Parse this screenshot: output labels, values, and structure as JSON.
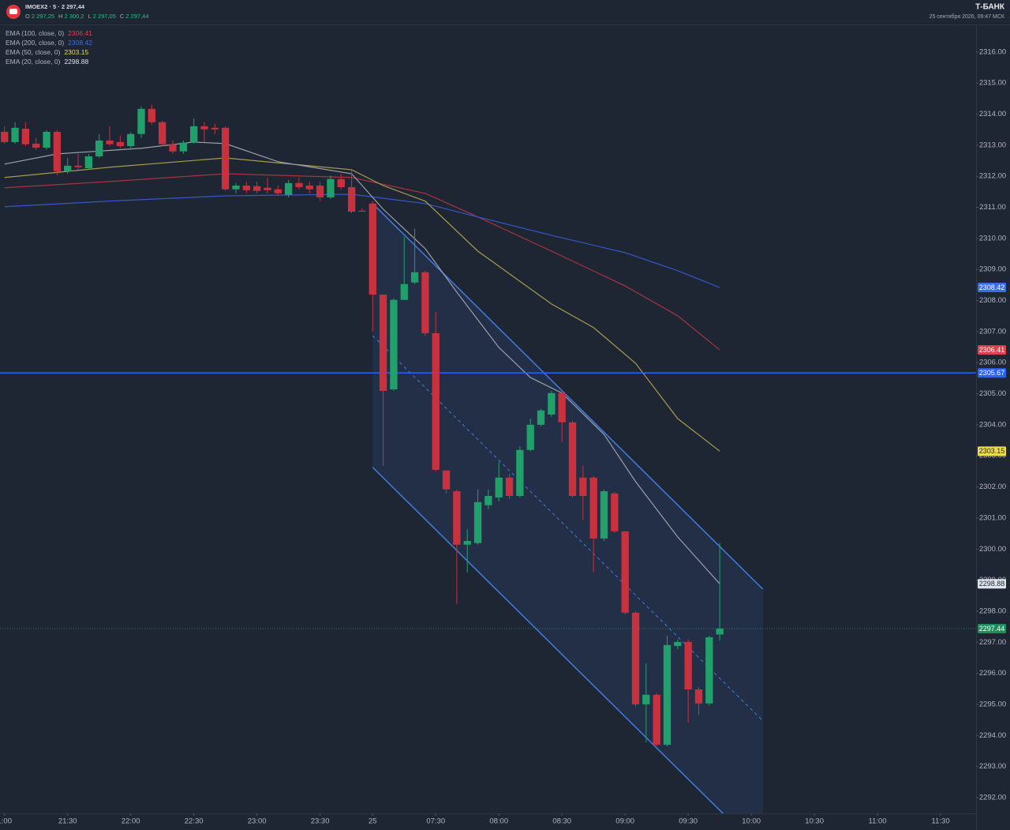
{
  "header": {
    "title": "IMOEX2 · 5 · 2 297,44",
    "ohlc": [
      {
        "key": "O",
        "value": "2 297,25"
      },
      {
        "key": "H",
        "value": "2 300,2"
      },
      {
        "key": "L",
        "value": "2 297,05"
      },
      {
        "key": "C",
        "value": "2 297,44"
      }
    ],
    "brand": "Т-БАНК",
    "date": "25 сентября 2026, 09:47 МСК"
  },
  "chart_data": {
    "type": "candlestick",
    "xlim": [
      -0.43,
      92.37
    ],
    "ylim": [
      2291.49,
      2316.86
    ],
    "xticks": [
      {
        "value": 0,
        "label": "1:00"
      },
      {
        "value": 6,
        "label": "21:30"
      },
      {
        "value": 12,
        "label": "22:00"
      },
      {
        "value": 18,
        "label": "22:30"
      },
      {
        "value": 24,
        "label": "23:00"
      },
      {
        "value": 30,
        "label": "23:30"
      },
      {
        "value": 35,
        "label": "25"
      },
      {
        "value": 41,
        "label": "07:30"
      },
      {
        "value": 47,
        "label": "08:00"
      },
      {
        "value": 53,
        "label": "08:30"
      },
      {
        "value": 59,
        "label": "09:00"
      },
      {
        "value": 65,
        "label": "09:30"
      },
      {
        "value": 71,
        "label": "10:00"
      },
      {
        "value": 77,
        "label": "10:30"
      },
      {
        "value": 83,
        "label": "11:00"
      },
      {
        "value": 89,
        "label": "11:30"
      }
    ],
    "yticks": [
      {
        "value": 2292,
        "label": "2292.00"
      },
      {
        "value": 2293,
        "label": "2293.00"
      },
      {
        "value": 2294,
        "label": "2294.00"
      },
      {
        "value": 2295,
        "label": "2295.00"
      },
      {
        "value": 2296,
        "label": "2296.00"
      },
      {
        "value": 2297,
        "label": "2297.00"
      },
      {
        "value": 2298,
        "label": "2298.00"
      },
      {
        "value": 2299,
        "label": "2299.00"
      },
      {
        "value": 2300,
        "label": "2300.00"
      },
      {
        "value": 2301,
        "label": "2301.00"
      },
      {
        "value": 2302,
        "label": "2302.00"
      },
      {
        "value": 2303,
        "label": "2303.00"
      },
      {
        "value": 2304,
        "label": "2304.00"
      },
      {
        "value": 2305,
        "label": "2305.00"
      },
      {
        "value": 2306,
        "label": "2306.00"
      },
      {
        "value": 2307,
        "label": "2307.00"
      },
      {
        "value": 2308,
        "label": "2308.00"
      },
      {
        "value": 2309,
        "label": "2309.00"
      },
      {
        "value": 2310,
        "label": "2310.00"
      },
      {
        "value": 2311,
        "label": "2311.00"
      },
      {
        "value": 2312,
        "label": "2312.00"
      },
      {
        "value": 2313,
        "label": "2313.00"
      },
      {
        "value": 2314,
        "label": "2314.00"
      },
      {
        "value": 2315,
        "label": "2315.00"
      },
      {
        "value": 2316,
        "label": "2316.00"
      }
    ],
    "up_color": "#22a06b",
    "down_color": "#c8323f",
    "candles": {
      "open": [
        2313.43,
        2313.1,
        2313.53,
        2313.05,
        2312.92,
        2313.43,
        2312.16,
        2312.34,
        2312.26,
        2312.64,
        2313.15,
        2313.1,
        2312.97,
        2313.36,
        2314.17,
        2313.74,
        2313.03,
        2312.8,
        2313.08,
        2313.61,
        2313.56,
        2313.56,
        2311.58,
        2311.7,
        2311.68,
        2311.63,
        2311.58,
        2311.4,
        2311.78,
        2311.7,
        2311.7,
        2311.32,
        2311.91,
        2311.65,
        2310.89,
        2311.12,
        2308.19,
        2305.14,
        2308.02,
        2308.58,
        2308.91,
        2306.95,
        2302.53,
        2301.86,
        2300.14,
        2300.19,
        2301.41,
        2301.66,
        2302.3,
        2301.71,
        2303.19,
        2304.0,
        2304.33,
        2305.02,
        2304.08,
        2302.3,
        2302.3,
        2300.34,
        2301.79,
        2300.57,
        2297.95,
        2295.0,
        2295.31,
        2293.7,
        2296.88,
        2297.01,
        2295.48,
        2295.03,
        2297.25
      ],
      "high": [
        2313.61,
        2313.74,
        2313.74,
        2313.23,
        2313.48,
        2313.48,
        2312.59,
        2312.72,
        2312.72,
        2313.36,
        2313.61,
        2313.31,
        2313.41,
        2314.25,
        2314.3,
        2313.79,
        2313.15,
        2313.15,
        2313.86,
        2313.74,
        2313.69,
        2313.61,
        2311.78,
        2311.83,
        2311.83,
        2311.96,
        2311.7,
        2311.88,
        2311.96,
        2311.83,
        2311.83,
        2312.03,
        2312.08,
        2312.21,
        2310.97,
        2311.2,
        2308.19,
        2308.07,
        2310.05,
        2310.31,
        2308.96,
        2307.64,
        2302.53,
        2301.92,
        2300.64,
        2301.92,
        2301.92,
        2302.81,
        2302.42,
        2303.31,
        2304.2,
        2304.51,
        2305.09,
        2305.07,
        2304.13,
        2302.68,
        2302.35,
        2301.92,
        2301.84,
        2300.57,
        2298.0,
        2296.32,
        2295.36,
        2297.21,
        2297.09,
        2297.09,
        2295.56,
        2297.21,
        2300.2
      ],
      "low": [
        2313.05,
        2313.05,
        2312.97,
        2312.85,
        2312.85,
        2312.03,
        2312.08,
        2312.21,
        2312.21,
        2312.59,
        2312.97,
        2312.9,
        2312.85,
        2313.23,
        2313.66,
        2312.97,
        2312.72,
        2312.72,
        2313.05,
        2313.1,
        2313.36,
        2311.53,
        2311.45,
        2311.45,
        2311.45,
        2311.45,
        2311.37,
        2311.32,
        2311.58,
        2311.45,
        2311.2,
        2311.27,
        2311.58,
        2310.81,
        2310.86,
        2307.0,
        2302.68,
        2305.09,
        2308.02,
        2308.53,
        2306.87,
        2302.5,
        2301.79,
        2298.23,
        2299.25,
        2300.14,
        2301.28,
        2301.53,
        2301.61,
        2301.66,
        2303.14,
        2303.95,
        2304.25,
        2303.44,
        2301.66,
        2300.95,
        2299.25,
        2300.26,
        2300.52,
        2297.9,
        2294.92,
        2293.78,
        2293.65,
        2293.65,
        2296.78,
        2294.41,
        2294.67,
        2294.97,
        2297.05
      ],
      "close": [
        2313.1,
        2313.56,
        2313.03,
        2312.92,
        2313.43,
        2312.16,
        2312.34,
        2312.29,
        2312.64,
        2313.15,
        2313.03,
        2312.97,
        2313.36,
        2314.17,
        2313.74,
        2313.03,
        2312.8,
        2313.08,
        2313.61,
        2313.51,
        2313.51,
        2311.58,
        2311.7,
        2311.55,
        2311.53,
        2311.55,
        2311.45,
        2311.78,
        2311.65,
        2311.58,
        2311.32,
        2311.91,
        2311.65,
        2310.86,
        2310.86,
        2308.19,
        2305.09,
        2308.02,
        2308.53,
        2308.91,
        2306.95,
        2302.55,
        2301.92,
        2300.14,
        2300.26,
        2301.51,
        2301.71,
        2302.3,
        2301.71,
        2303.19,
        2304.0,
        2304.46,
        2305.02,
        2304.08,
        2301.71,
        2301.71,
        2300.34,
        2301.86,
        2300.57,
        2297.95,
        2295.0,
        2295.31,
        2293.7,
        2296.91,
        2297.01,
        2295.48,
        2295.03,
        2297.16,
        2297.44
      ]
    },
    "last_color": "#1b8f5a",
    "series": [
      {
        "name": "EMA (100, close, 0)",
        "color": "#a8343f",
        "label_color": "#e0404e",
        "x": [
          0,
          10,
          21,
          33,
          40,
          45,
          52,
          59,
          64,
          68
        ],
        "values": [
          2311.63,
          2311.83,
          2312.08,
          2311.96,
          2311.45,
          2310.69,
          2309.59,
          2308.47,
          2307.51,
          2306.41
        ]
      },
      {
        "name": "EMA (200, close, 0)",
        "color": "#3558c8",
        "label_color": "#3a6ee8",
        "x": [
          0,
          10,
          21,
          33,
          40,
          45,
          52,
          59,
          64,
          68
        ],
        "values": [
          2311.02,
          2311.2,
          2311.37,
          2311.42,
          2311.12,
          2310.69,
          2310.1,
          2309.54,
          2308.96,
          2308.42
        ]
      },
      {
        "name": "EMA (50, close, 0)",
        "color": "#a89c4c",
        "label_color": "#f0dc48",
        "x": [
          0,
          10,
          21,
          33,
          36,
          40,
          45,
          52,
          56,
          60,
          64,
          68
        ],
        "values": [
          2311.96,
          2312.29,
          2312.59,
          2312.21,
          2311.7,
          2311.2,
          2309.59,
          2307.89,
          2307.13,
          2305.98,
          2304.2,
          2303.15
        ]
      },
      {
        "name": "EMA (20, close, 0)",
        "color": "#9aa0ab",
        "label_color": "#dfe3ea",
        "x": [
          0,
          5,
          13,
          18,
          21,
          26,
          33,
          36,
          40,
          43,
          47,
          50,
          53,
          57,
          60,
          64,
          68
        ],
        "values": [
          2312.39,
          2312.72,
          2312.9,
          2313.1,
          2313.05,
          2312.47,
          2312.08,
          2310.94,
          2309.67,
          2308.27,
          2306.49,
          2305.52,
          2305.02,
          2303.69,
          2302.17,
          2300.39,
          2298.88
        ]
      }
    ],
    "hlines": [
      {
        "value": 2305.67,
        "color": "#2962ff"
      }
    ],
    "channel": {
      "color": "#3f7de0",
      "upper": {
        "x": [
          35,
          72.1
        ],
        "values": [
          2311.12,
          2298.71
        ]
      },
      "middle": {
        "x": [
          35,
          72.1
        ],
        "values": [
          2306.87,
          2294.47
        ]
      },
      "lower": {
        "x": [
          35,
          72.1
        ],
        "values": [
          2302.63,
          2290.22
        ]
      }
    }
  }
}
